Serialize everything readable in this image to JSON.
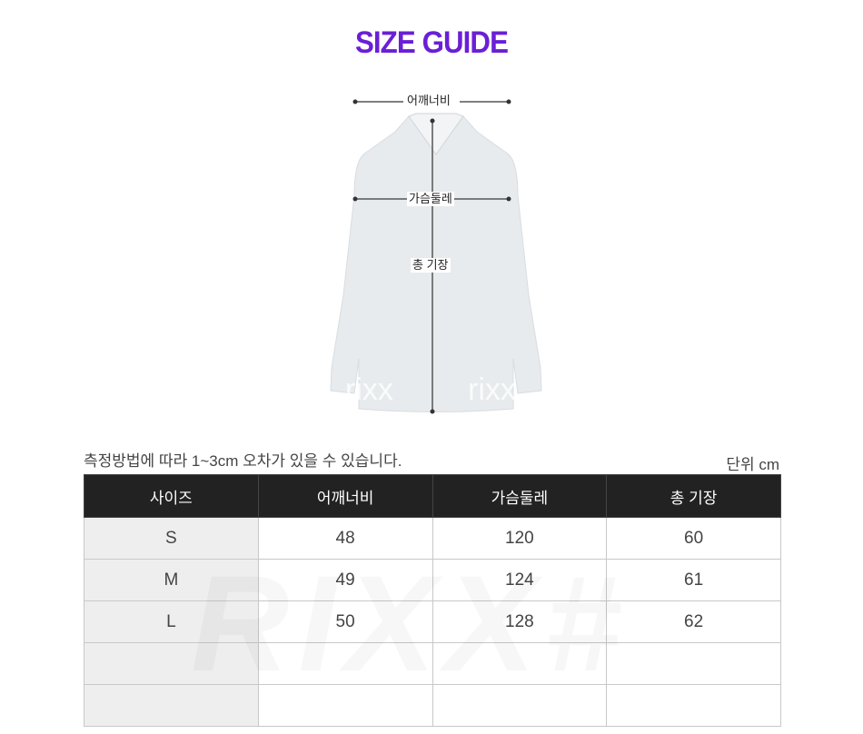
{
  "title": "SIZE GUIDE",
  "figure": {
    "labels": {
      "shoulder": "어깨너비",
      "chest": "가슴둘레",
      "length": "총 기장"
    },
    "watermark": "rixx"
  },
  "note": "측정방법에 따라 1~3cm 오차가 있을 수 있습니다.",
  "unit": "단위 cm",
  "table": {
    "headers": [
      "사이즈",
      "어깨너비",
      "가슴둘레",
      "총 기장"
    ],
    "rows": [
      [
        "S",
        "48",
        "120",
        "60"
      ],
      [
        "M",
        "49",
        "124",
        "61"
      ],
      [
        "L",
        "50",
        "128",
        "62"
      ],
      [
        "",
        "",
        "",
        ""
      ],
      [
        "",
        "",
        "",
        ""
      ]
    ]
  },
  "watermark": "RIXX#",
  "colors": {
    "title": "#6a1fd6",
    "header_bg": "#222222",
    "size_col_bg": "#eeeeee"
  }
}
